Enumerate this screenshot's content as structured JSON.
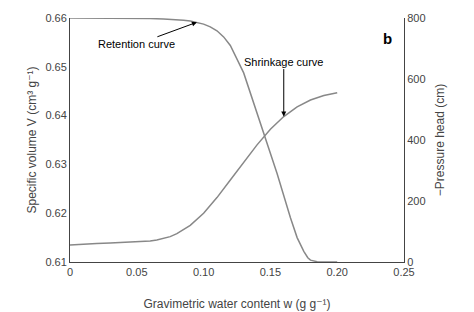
{
  "chart_data": {
    "type": "line",
    "title": "b",
    "x_label": "Gravimetric water content w (g g⁻¹)",
    "y_label": "Specific volume V (cm³ g⁻¹)",
    "y2_label": "−Pressure head (cm)",
    "xlim": [
      0,
      0.25
    ],
    "xticks": [
      0,
      0.05,
      {
        "value": 0.1,
        "label": "0.10"
      },
      0.15,
      {
        "value": 0.2,
        "label": "0.20"
      },
      0.25
    ],
    "ylim": [
      0.61,
      0.66
    ],
    "yticks": [
      0.61,
      0.62,
      0.63,
      0.64,
      0.65,
      0.66
    ],
    "y2lim": [
      0,
      800
    ],
    "y2ticks": [
      0,
      200,
      400,
      600,
      800
    ],
    "grid": false,
    "annotations": [
      "Shrinkage curve",
      "Retention curve"
    ],
    "series": [
      {
        "color": "#888888",
        "x": [
          0.0,
          0.01,
          0.02,
          0.03,
          0.04,
          0.05,
          0.055,
          0.06,
          0.065,
          0.07,
          0.075,
          0.08,
          0.09,
          0.1,
          0.11,
          0.12,
          0.13,
          0.14,
          0.15,
          0.16,
          0.17,
          0.18,
          0.19,
          0.2
        ],
        "values": [
          0.6135,
          0.6137,
          0.6138,
          0.6139,
          0.614,
          0.6141,
          0.6142,
          0.6143,
          0.6145,
          0.6148,
          0.6152,
          0.6158,
          0.6175,
          0.62,
          0.6232,
          0.6268,
          0.6305,
          0.634,
          0.6372,
          0.6398,
          0.6418,
          0.6432,
          0.6441,
          0.6447
        ]
      },
      {
        "color": "#888888",
        "axis": "y2",
        "x": [
          0.0,
          0.02,
          0.04,
          0.06,
          0.07,
          0.075,
          0.08,
          0.085,
          0.09,
          0.095,
          0.1,
          0.105,
          0.11,
          0.115,
          0.12,
          0.13,
          0.14,
          0.155,
          0.165,
          0.17,
          0.175,
          0.178,
          0.18,
          0.182,
          0.185,
          0.19,
          0.2
        ],
        "values": [
          800,
          800,
          799,
          798,
          797,
          796,
          795,
          793,
          790,
          786,
          780,
          771,
          758,
          738,
          710,
          620,
          490,
          290,
          145,
          80,
          35,
          14,
          6,
          3,
          1,
          0.3,
          0
        ]
      }
    ]
  }
}
